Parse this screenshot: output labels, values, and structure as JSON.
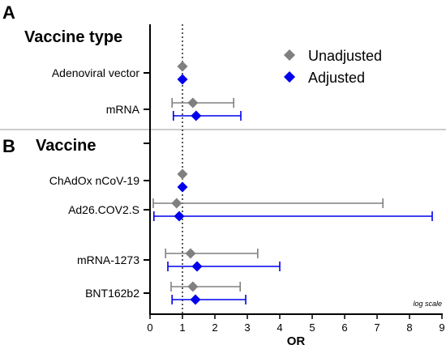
{
  "chart_data": {
    "type": "forest",
    "xlabel": "OR",
    "xlim": [
      0,
      9
    ],
    "x_ticks": [
      0,
      1,
      2,
      3,
      4,
      5,
      6,
      7,
      8,
      9
    ],
    "reference_line": 1,
    "scale_note": "log scale",
    "legend": {
      "placement": "top-right",
      "entries": [
        {
          "name": "Unadjusted",
          "color": "#808080",
          "marker": "diamond"
        },
        {
          "name": "Adjusted",
          "color": "#0000ee",
          "marker": "diamond"
        }
      ]
    },
    "panels": [
      {
        "letter": "A",
        "title": "Vaccine type",
        "rows": [
          {
            "label": "Adenoviral vector",
            "unadjusted": {
              "or": 1.0
            },
            "adjusted": {
              "or": 1.0
            }
          },
          {
            "label": "mRNA",
            "unadjusted": {
              "or": 1.32,
              "lower": 0.68,
              "upper": 2.58
            },
            "adjusted": {
              "or": 1.42,
              "lower": 0.72,
              "upper": 2.8
            }
          }
        ]
      },
      {
        "letter": "B",
        "title": "Vaccine",
        "rows": [
          {
            "label": "ChAdOx nCoV-19",
            "unadjusted": {
              "or": 1.0
            },
            "adjusted": {
              "or": 1.0
            }
          },
          {
            "label": "Ad26.COV2.S",
            "unadjusted": {
              "or": 0.82,
              "lower": 0.1,
              "upper": 7.18
            },
            "adjusted": {
              "or": 0.9,
              "lower": 0.12,
              "upper": 8.7
            }
          },
          {
            "label": "mRNA-1273",
            "unadjusted": {
              "or": 1.25,
              "lower": 0.48,
              "upper": 3.32
            },
            "adjusted": {
              "or": 1.45,
              "lower": 0.55,
              "upper": 4.0
            }
          },
          {
            "label": "BNT162b2",
            "unadjusted": {
              "or": 1.32,
              "lower": 0.65,
              "upper": 2.78
            },
            "adjusted": {
              "or": 1.4,
              "lower": 0.68,
              "upper": 2.95
            }
          }
        ]
      }
    ]
  }
}
